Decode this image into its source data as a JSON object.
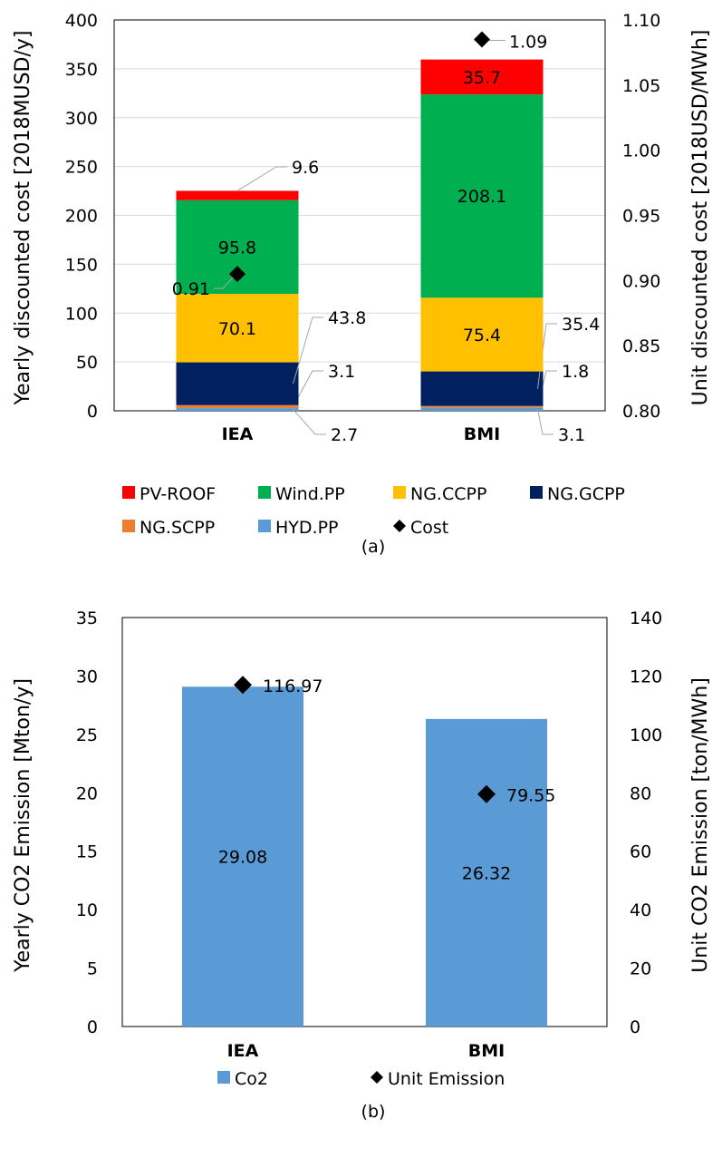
{
  "chart_data": [
    {
      "type": "bar",
      "stacked": true,
      "caption": "(a)",
      "categories": [
        "IEA",
        "BMI"
      ],
      "ylabel": "Yearly discounted cost [2018MUSD/y]",
      "y2label": "Unit discounted cost [2018USD/MWh]",
      "ylim": [
        0,
        400
      ],
      "yticks": [
        "0",
        "50",
        "100",
        "150",
        "200",
        "250",
        "300",
        "350",
        "400"
      ],
      "y2lim": [
        0.8,
        1.1
      ],
      "y2ticks": [
        "0.80",
        "0.85",
        "0.90",
        "0.95",
        "1.00",
        "1.05",
        "1.10"
      ],
      "grid": true,
      "legend_position": "bottom",
      "series": [
        {
          "name": "HYD.PP",
          "color": "#5b9bd5",
          "values": [
            2.7,
            3.1
          ],
          "labels": [
            "2.7",
            "3.1"
          ],
          "callout": true
        },
        {
          "name": "NG.SCPP",
          "color": "#ed7d31",
          "values": [
            3.1,
            1.8
          ],
          "labels": [
            "3.1",
            "1.8"
          ],
          "callout": true
        },
        {
          "name": "NG.GCPP",
          "color": "#002060",
          "values": [
            43.8,
            35.4
          ],
          "labels": [
            "43.8",
            "35.4"
          ],
          "callout": true
        },
        {
          "name": "NG.CCPP",
          "color": "#ffc000",
          "values": [
            70.1,
            75.4
          ],
          "labels": [
            "70.1",
            "75.4"
          ],
          "callout": false
        },
        {
          "name": "Wind.PP",
          "color": "#00b050",
          "values": [
            95.8,
            208.1
          ],
          "labels": [
            "95.8",
            "208.1"
          ],
          "callout": false
        },
        {
          "name": "PV-ROOF",
          "color": "#ff0000",
          "values": [
            9.6,
            35.7
          ],
          "labels": [
            "9.6",
            "35.7"
          ],
          "callout": true
        }
      ],
      "line_series": {
        "name": "Cost",
        "axis": "secondary",
        "marker": "diamond",
        "color": "#000000",
        "values": [
          0.905,
          1.085
        ],
        "labels": [
          "0.91",
          "1.09"
        ]
      },
      "legend": [
        "PV-ROOF",
        "Wind.PP",
        "NG.CCPP",
        "NG.GCPP",
        "NG.SCPP",
        "HYD.PP",
        "Cost"
      ]
    },
    {
      "type": "bar",
      "caption": "(b)",
      "categories": [
        "IEA",
        "BMI"
      ],
      "ylabel": "Yearly CO2 Emission [Mton/y]",
      "y2label": "Unit CO2 Emission [ton/MWh]",
      "ylim": [
        0,
        35
      ],
      "yticks": [
        "0",
        "5",
        "10",
        "15",
        "20",
        "25",
        "30",
        "35"
      ],
      "y2lim": [
        0,
        140
      ],
      "y2ticks": [
        "0",
        "20",
        "40",
        "60",
        "80",
        "100",
        "120",
        "140"
      ],
      "grid": false,
      "legend_position": "bottom",
      "series": [
        {
          "name": "Co2",
          "color": "#5b9bd5",
          "values": [
            29.08,
            26.32
          ],
          "labels": [
            "29.08",
            "26.32"
          ]
        }
      ],
      "line_series": {
        "name": "Unit Emission",
        "axis": "secondary",
        "marker": "diamond",
        "color": "#000000",
        "values": [
          116.97,
          79.55
        ],
        "labels": [
          "116.97",
          "79.55"
        ]
      },
      "legend": [
        "Co2",
        "Unit Emission"
      ]
    }
  ]
}
